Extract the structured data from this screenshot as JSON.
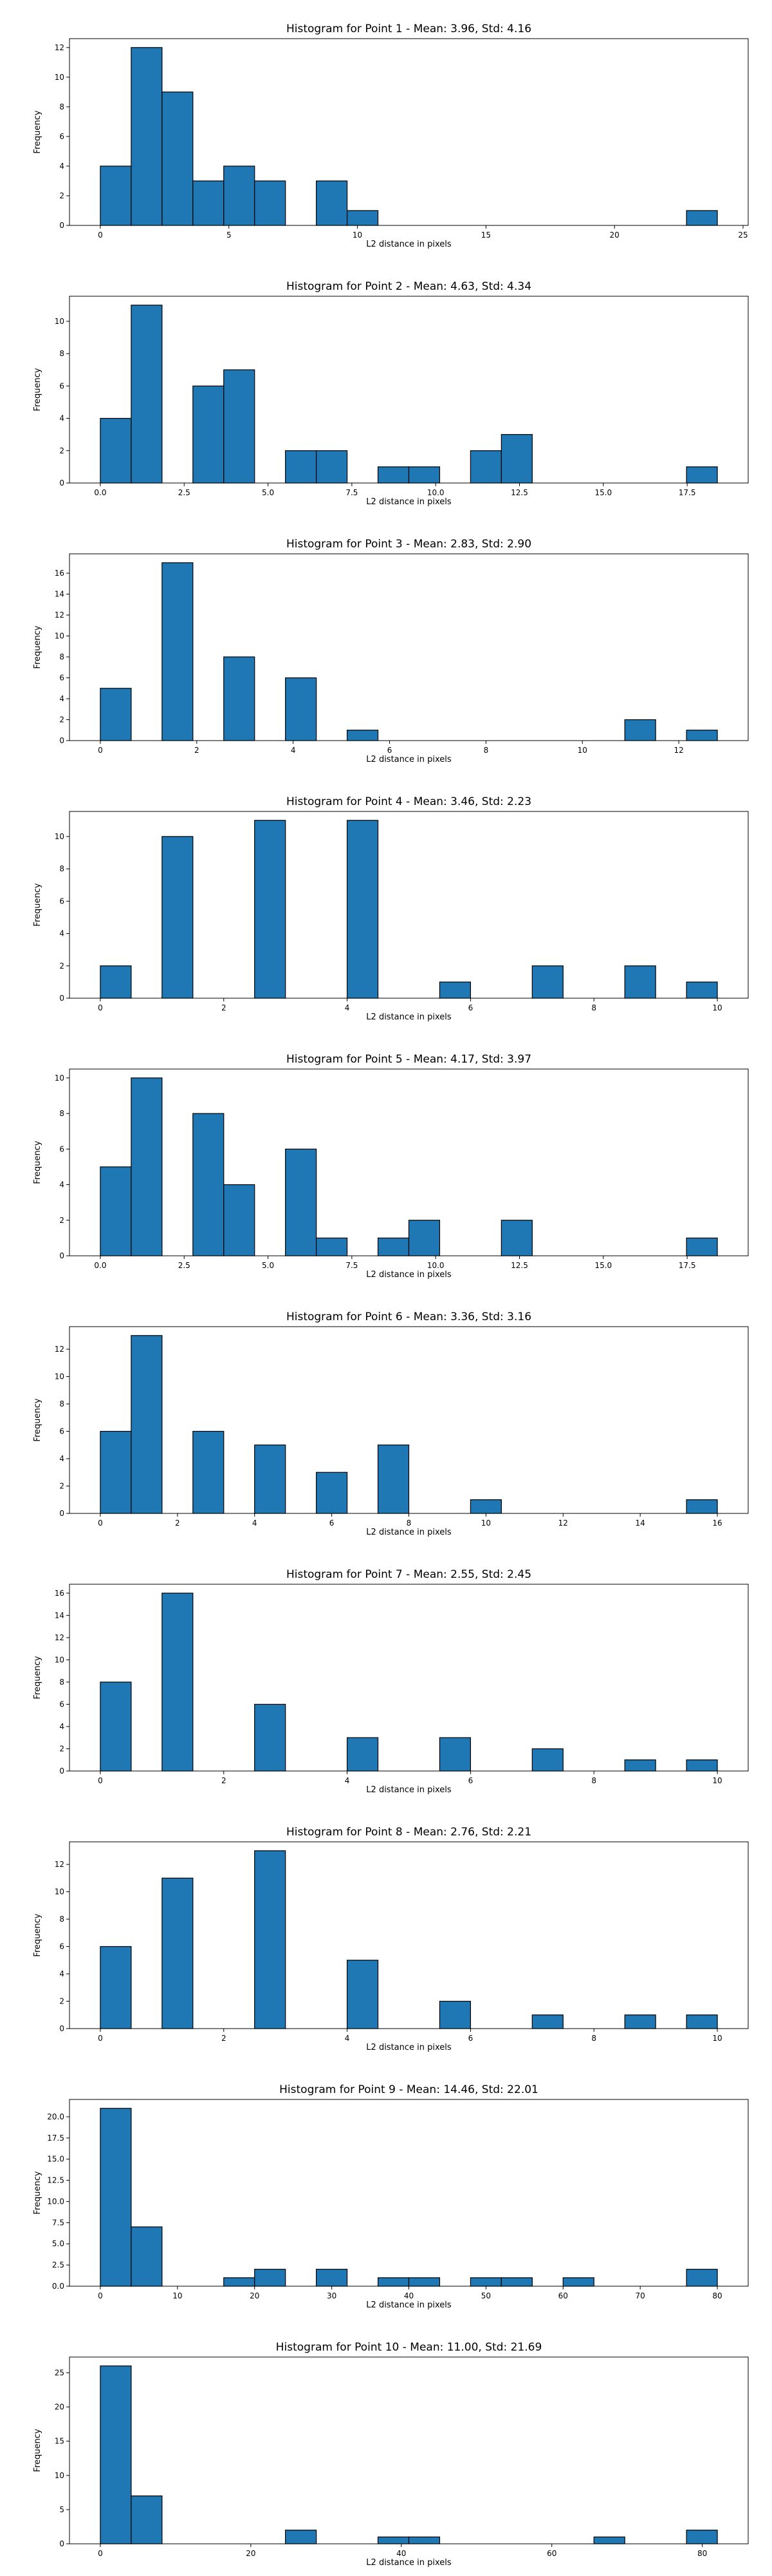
{
  "chart_data": [
    {
      "type": "bar",
      "title": "Histogram for Point 1 - Mean: 3.96, Std: 4.16",
      "xlabel": "L2 distance in pixels",
      "ylabel": "Frequency",
      "xlim": [
        -1.2,
        25.2
      ],
      "ylim": [
        0,
        12.6
      ],
      "xticks": [
        "0",
        "5",
        "10",
        "15",
        "20",
        "25"
      ],
      "yticks": [
        "0",
        "2",
        "4",
        "6",
        "8",
        "10",
        "12"
      ],
      "bins": [
        {
          "x0": 0.0,
          "x1": 1.2,
          "count": 4
        },
        {
          "x0": 1.2,
          "x1": 2.4,
          "count": 12
        },
        {
          "x0": 2.4,
          "x1": 3.6,
          "count": 9
        },
        {
          "x0": 3.6,
          "x1": 4.8,
          "count": 3
        },
        {
          "x0": 4.8,
          "x1": 6.0,
          "count": 4
        },
        {
          "x0": 6.0,
          "x1": 7.2,
          "count": 3
        },
        {
          "x0": 8.4,
          "x1": 9.6,
          "count": 3
        },
        {
          "x0": 9.6,
          "x1": 10.8,
          "count": 1
        },
        {
          "x0": 22.8,
          "x1": 24.0,
          "count": 1
        }
      ]
    },
    {
      "type": "bar",
      "title": "Histogram for Point 2 - Mean: 4.63, Std: 4.34",
      "xlabel": "L2 distance in pixels",
      "ylabel": "Frequency",
      "xlim": [
        -0.92,
        19.32
      ],
      "ylim": [
        0,
        11.55
      ],
      "xticks": [
        "0.0",
        "2.5",
        "5.0",
        "7.5",
        "10.0",
        "12.5",
        "15.0",
        "17.5"
      ],
      "yticks": [
        "0",
        "2",
        "4",
        "6",
        "8",
        "10"
      ],
      "bins": [
        {
          "x0": 0.0,
          "x1": 0.92,
          "count": 4
        },
        {
          "x0": 0.92,
          "x1": 1.84,
          "count": 11
        },
        {
          "x0": 2.76,
          "x1": 3.68,
          "count": 6
        },
        {
          "x0": 3.68,
          "x1": 4.6,
          "count": 7
        },
        {
          "x0": 5.52,
          "x1": 6.44,
          "count": 2
        },
        {
          "x0": 6.44,
          "x1": 7.36,
          "count": 2
        },
        {
          "x0": 8.28,
          "x1": 9.2,
          "count": 1
        },
        {
          "x0": 9.2,
          "x1": 10.12,
          "count": 1
        },
        {
          "x0": 11.04,
          "x1": 11.96,
          "count": 2
        },
        {
          "x0": 11.96,
          "x1": 12.88,
          "count": 3
        },
        {
          "x0": 17.48,
          "x1": 18.4,
          "count": 1
        }
      ]
    },
    {
      "type": "bar",
      "title": "Histogram for Point 3 - Mean: 2.83, Std: 2.90",
      "xlabel": "L2 distance in pixels",
      "ylabel": "Frequency",
      "xlim": [
        -0.64,
        13.44
      ],
      "ylim": [
        0,
        17.85
      ],
      "xticks": [
        "0",
        "2",
        "4",
        "6",
        "8",
        "10",
        "12"
      ],
      "yticks": [
        "0",
        "2",
        "4",
        "6",
        "8",
        "10",
        "12",
        "14",
        "16"
      ],
      "bins": [
        {
          "x0": 0.0,
          "x1": 0.64,
          "count": 5
        },
        {
          "x0": 1.28,
          "x1": 1.92,
          "count": 17
        },
        {
          "x0": 2.56,
          "x1": 3.2,
          "count": 8
        },
        {
          "x0": 3.84,
          "x1": 4.48,
          "count": 6
        },
        {
          "x0": 5.12,
          "x1": 5.76,
          "count": 1
        },
        {
          "x0": 10.88,
          "x1": 11.52,
          "count": 2
        },
        {
          "x0": 12.16,
          "x1": 12.8,
          "count": 1
        }
      ]
    },
    {
      "type": "bar",
      "title": "Histogram for Point 4 - Mean: 3.46, Std: 2.23",
      "xlabel": "L2 distance in pixels",
      "ylabel": "Frequency",
      "xlim": [
        -0.5,
        10.5
      ],
      "ylim": [
        0,
        11.55
      ],
      "xticks": [
        "0",
        "2",
        "4",
        "6",
        "8",
        "10"
      ],
      "yticks": [
        "0",
        "2",
        "4",
        "6",
        "8",
        "10"
      ],
      "bins": [
        {
          "x0": 0.0,
          "x1": 0.5,
          "count": 2
        },
        {
          "x0": 1.0,
          "x1": 1.5,
          "count": 10
        },
        {
          "x0": 2.5,
          "x1": 3.0,
          "count": 11
        },
        {
          "x0": 4.0,
          "x1": 4.5,
          "count": 11
        },
        {
          "x0": 5.5,
          "x1": 6.0,
          "count": 1
        },
        {
          "x0": 7.0,
          "x1": 7.5,
          "count": 2
        },
        {
          "x0": 8.5,
          "x1": 9.0,
          "count": 2
        },
        {
          "x0": 9.5,
          "x1": 10.0,
          "count": 1
        }
      ]
    },
    {
      "type": "bar",
      "title": "Histogram for Point 5 - Mean: 4.17, Std: 3.97",
      "xlabel": "L2 distance in pixels",
      "ylabel": "Frequency",
      "xlim": [
        -0.92,
        19.32
      ],
      "ylim": [
        0,
        10.5
      ],
      "xticks": [
        "0.0",
        "2.5",
        "5.0",
        "7.5",
        "10.0",
        "12.5",
        "15.0",
        "17.5"
      ],
      "yticks": [
        "0",
        "2",
        "4",
        "6",
        "8",
        "10"
      ],
      "bins": [
        {
          "x0": 0.0,
          "x1": 0.92,
          "count": 5
        },
        {
          "x0": 0.92,
          "x1": 1.84,
          "count": 10
        },
        {
          "x0": 2.76,
          "x1": 3.68,
          "count": 8
        },
        {
          "x0": 3.68,
          "x1": 4.6,
          "count": 4
        },
        {
          "x0": 5.52,
          "x1": 6.44,
          "count": 6
        },
        {
          "x0": 6.44,
          "x1": 7.36,
          "count": 1
        },
        {
          "x0": 8.28,
          "x1": 9.2,
          "count": 1
        },
        {
          "x0": 9.2,
          "x1": 10.12,
          "count": 2
        },
        {
          "x0": 11.96,
          "x1": 12.88,
          "count": 2
        },
        {
          "x0": 17.48,
          "x1": 18.4,
          "count": 1
        }
      ]
    },
    {
      "type": "bar",
      "title": "Histogram for Point 6 - Mean: 3.36, Std: 3.16",
      "xlabel": "L2 distance in pixels",
      "ylabel": "Frequency",
      "xlim": [
        -0.8,
        16.8
      ],
      "ylim": [
        0,
        13.65
      ],
      "xticks": [
        "0",
        "2",
        "4",
        "6",
        "8",
        "10",
        "12",
        "14",
        "16"
      ],
      "yticks": [
        "0",
        "2",
        "4",
        "6",
        "8",
        "10",
        "12"
      ],
      "bins": [
        {
          "x0": 0.0,
          "x1": 0.8,
          "count": 6
        },
        {
          "x0": 0.8,
          "x1": 1.6,
          "count": 13
        },
        {
          "x0": 2.4,
          "x1": 3.2,
          "count": 6
        },
        {
          "x0": 4.0,
          "x1": 4.8,
          "count": 5
        },
        {
          "x0": 5.6,
          "x1": 6.4,
          "count": 3
        },
        {
          "x0": 7.2,
          "x1": 8.0,
          "count": 5
        },
        {
          "x0": 9.6,
          "x1": 10.4,
          "count": 1
        },
        {
          "x0": 15.2,
          "x1": 16.0,
          "count": 1
        }
      ]
    },
    {
      "type": "bar",
      "title": "Histogram for Point 7 - Mean: 2.55, Std: 2.45",
      "xlabel": "L2 distance in pixels",
      "ylabel": "Frequency",
      "xlim": [
        -0.5,
        10.5
      ],
      "ylim": [
        0,
        16.8
      ],
      "xticks": [
        "0",
        "2",
        "4",
        "6",
        "8",
        "10"
      ],
      "yticks": [
        "0",
        "2",
        "4",
        "6",
        "8",
        "10",
        "12",
        "14",
        "16"
      ],
      "bins": [
        {
          "x0": 0.0,
          "x1": 0.5,
          "count": 8
        },
        {
          "x0": 1.0,
          "x1": 1.5,
          "count": 16
        },
        {
          "x0": 2.5,
          "x1": 3.0,
          "count": 6
        },
        {
          "x0": 4.0,
          "x1": 4.5,
          "count": 3
        },
        {
          "x0": 5.5,
          "x1": 6.0,
          "count": 3
        },
        {
          "x0": 7.0,
          "x1": 7.5,
          "count": 2
        },
        {
          "x0": 8.5,
          "x1": 9.0,
          "count": 1
        },
        {
          "x0": 9.5,
          "x1": 10.0,
          "count": 1
        }
      ]
    },
    {
      "type": "bar",
      "title": "Histogram for Point 8 - Mean: 2.76, Std: 2.21",
      "xlabel": "L2 distance in pixels",
      "ylabel": "Frequency",
      "xlim": [
        -0.5,
        10.5
      ],
      "ylim": [
        0,
        13.65
      ],
      "xticks": [
        "0",
        "2",
        "4",
        "6",
        "8",
        "10"
      ],
      "yticks": [
        "0",
        "2",
        "4",
        "6",
        "8",
        "10",
        "12"
      ],
      "bins": [
        {
          "x0": 0.0,
          "x1": 0.5,
          "count": 6
        },
        {
          "x0": 1.0,
          "x1": 1.5,
          "count": 11
        },
        {
          "x0": 2.5,
          "x1": 3.0,
          "count": 13
        },
        {
          "x0": 4.0,
          "x1": 4.5,
          "count": 5
        },
        {
          "x0": 5.5,
          "x1": 6.0,
          "count": 2
        },
        {
          "x0": 7.0,
          "x1": 7.5,
          "count": 1
        },
        {
          "x0": 8.5,
          "x1": 9.0,
          "count": 1
        },
        {
          "x0": 9.5,
          "x1": 10.0,
          "count": 1
        }
      ]
    },
    {
      "type": "bar",
      "title": "Histogram for Point 9 - Mean: 14.46, Std: 22.01",
      "xlabel": "L2 distance in pixels",
      "ylabel": "Frequency",
      "xlim": [
        -4.0,
        84.0
      ],
      "ylim": [
        0,
        22.05
      ],
      "xticks": [
        "0",
        "10",
        "20",
        "30",
        "40",
        "50",
        "60",
        "70",
        "80"
      ],
      "yticks": [
        "0.0",
        "2.5",
        "5.0",
        "7.5",
        "10.0",
        "12.5",
        "15.0",
        "17.5",
        "20.0"
      ],
      "bins": [
        {
          "x0": 0.0,
          "x1": 4.0,
          "count": 21
        },
        {
          "x0": 4.0,
          "x1": 8.0,
          "count": 7
        },
        {
          "x0": 16.0,
          "x1": 20.0,
          "count": 1
        },
        {
          "x0": 20.0,
          "x1": 24.0,
          "count": 2
        },
        {
          "x0": 28.0,
          "x1": 32.0,
          "count": 2
        },
        {
          "x0": 36.0,
          "x1": 40.0,
          "count": 1
        },
        {
          "x0": 40.0,
          "x1": 44.0,
          "count": 1
        },
        {
          "x0": 48.0,
          "x1": 52.0,
          "count": 1
        },
        {
          "x0": 52.0,
          "x1": 56.0,
          "count": 1
        },
        {
          "x0": 60.0,
          "x1": 64.0,
          "count": 1
        },
        {
          "x0": 76.0,
          "x1": 80.0,
          "count": 2
        }
      ]
    },
    {
      "type": "bar",
      "title": "Histogram for Point 10 - Mean: 11.00, Std: 21.69",
      "xlabel": "L2 distance in pixels",
      "ylabel": "Frequency",
      "xlim": [
        -4.1,
        86.1
      ],
      "ylim": [
        0,
        27.3
      ],
      "xticks": [
        "0",
        "20",
        "40",
        "60",
        "80"
      ],
      "yticks": [
        "0",
        "5",
        "10",
        "15",
        "20",
        "25"
      ],
      "bins": [
        {
          "x0": 0.0,
          "x1": 4.1,
          "count": 26
        },
        {
          "x0": 4.1,
          "x1": 8.2,
          "count": 7
        },
        {
          "x0": 24.6,
          "x1": 28.7,
          "count": 2
        },
        {
          "x0": 36.9,
          "x1": 41.0,
          "count": 1
        },
        {
          "x0": 41.0,
          "x1": 45.1,
          "count": 1
        },
        {
          "x0": 65.6,
          "x1": 69.7,
          "count": 1
        },
        {
          "x0": 77.9,
          "x1": 82.0,
          "count": 2
        }
      ]
    }
  ],
  "colors": {
    "bar_fill": "#1f77b4",
    "bar_edge": "#000000"
  }
}
